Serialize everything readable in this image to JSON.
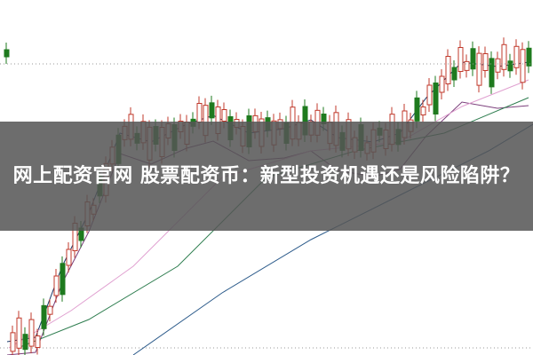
{
  "article": {
    "title": "网上配资官网 股票配资币：新型投资机遇还是风险陷阱？"
  },
  "colors": {
    "up": "#c0392b",
    "down": "#1e7a1e",
    "ma_short": "#1a3a6b",
    "ma_mid": "#7b3f7b",
    "ma_long": "#e0a0d0",
    "ma_longer": "#2e7d4f",
    "ma_longest": "#2b5a8a"
  }
}
